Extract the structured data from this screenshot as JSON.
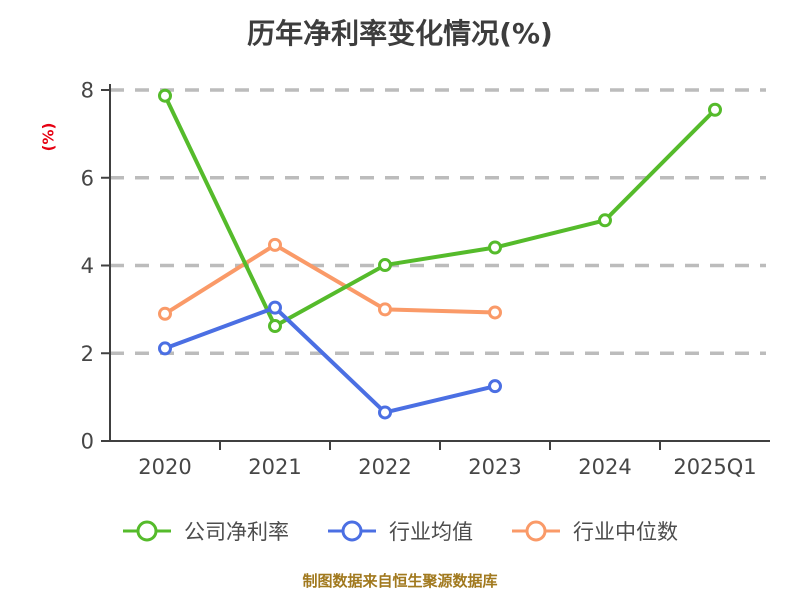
{
  "chart_data": {
    "type": "line",
    "title": "历年净利率变化情况(%)",
    "ylabel": "(%)",
    "source_note": "制图数据来自恒生聚源数据库",
    "categories": [
      "2020",
      "2021",
      "2022",
      "2023",
      "2024",
      "2025Q1"
    ],
    "series": [
      {
        "name": "公司净利率",
        "color": "#55bb2b",
        "values": [
          7.87,
          2.62,
          4.01,
          4.41,
          5.03,
          7.55
        ]
      },
      {
        "name": "行业均值",
        "color": "#4b6fe3",
        "values": [
          2.11,
          3.04,
          0.65,
          1.25,
          null,
          null
        ]
      },
      {
        "name": "行业中位数",
        "color": "#fa9a68",
        "values": [
          2.9,
          4.47,
          3.0,
          2.93,
          null,
          null
        ]
      }
    ],
    "y_axis": {
      "min": 0,
      "max": 8,
      "tick_step": 2,
      "ticks": [
        0,
        2,
        4,
        6,
        8
      ]
    },
    "grid": {
      "show": true,
      "style": "dashed",
      "position": "horizontal"
    },
    "legend_position": "bottom",
    "marker": "open-circle",
    "colors": {
      "grid": "#bcbcbc",
      "axis": "#404040",
      "tick_label": "#464646",
      "title": "#3d3d3d",
      "legend_text": "#4d4d4d",
      "ylabel": "#e60012",
      "source_note": "#a1791e",
      "marker_fill": "#ffffff"
    }
  }
}
